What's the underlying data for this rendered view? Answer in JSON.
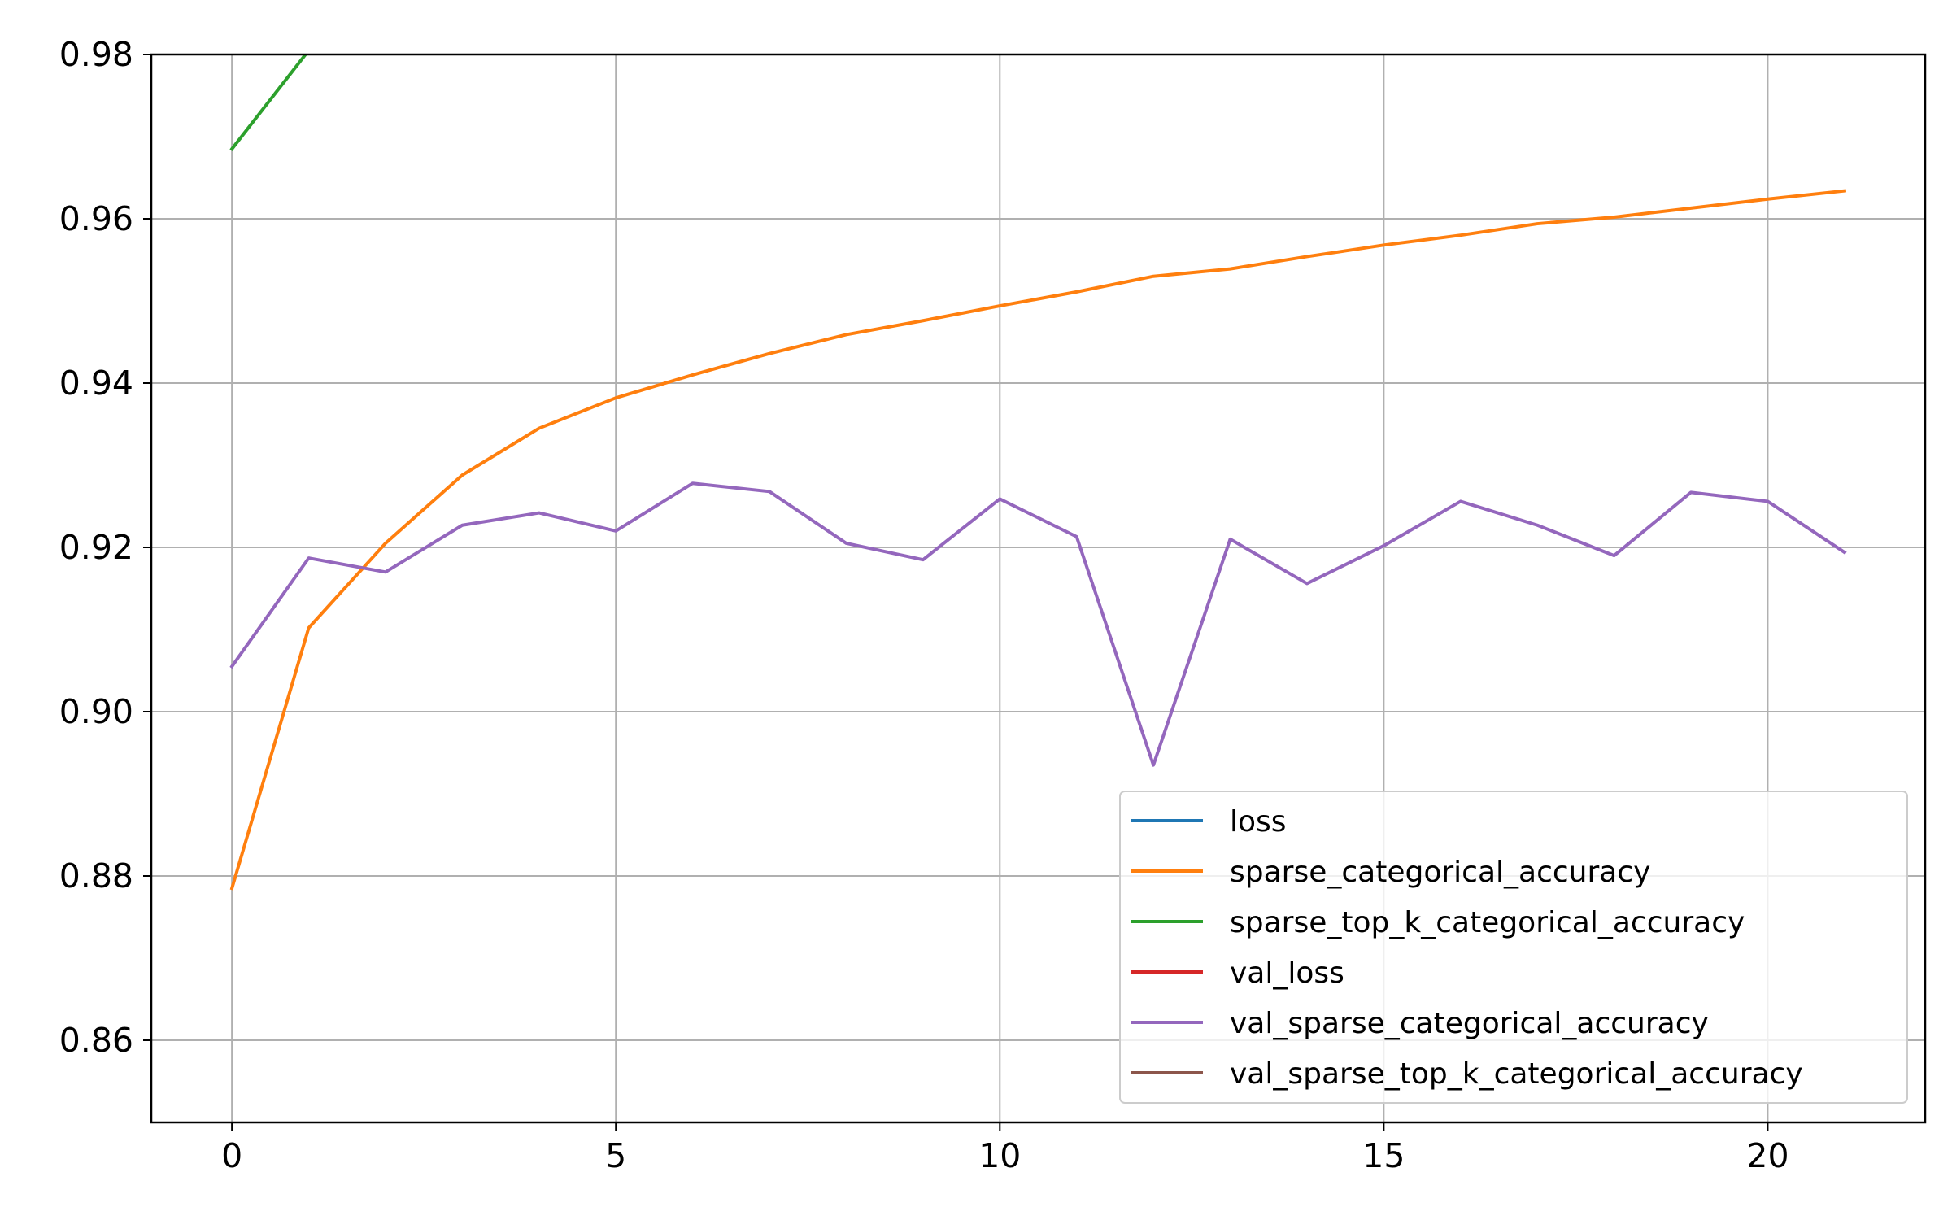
{
  "chart_data": {
    "type": "line",
    "title": "",
    "xlabel": "",
    "ylabel": "",
    "xlim": [
      -1.05,
      22.05
    ],
    "ylim": [
      0.85,
      0.98
    ],
    "xticks": [
      0,
      5,
      10,
      15,
      20
    ],
    "yticks": [
      0.86,
      0.88,
      0.9,
      0.92,
      0.94,
      0.96,
      0.98
    ],
    "x_tick_labels": [
      "0",
      "5",
      "10",
      "15",
      "20"
    ],
    "y_tick_labels": [
      "0.86",
      "0.88",
      "0.90",
      "0.92",
      "0.94",
      "0.96",
      "0.98"
    ],
    "grid": true,
    "legend_position": "bottom-right",
    "series": [
      {
        "name": "loss",
        "color": "#1f77b4",
        "x": [],
        "values": []
      },
      {
        "name": "sparse_categorical_accuracy",
        "color": "#ff7f0e",
        "x": [
          0,
          1,
          2,
          3,
          4,
          5,
          6,
          7,
          8,
          9,
          10,
          11,
          12,
          13,
          14,
          15,
          16,
          17,
          18,
          19,
          20,
          21
        ],
        "values": [
          0.8785,
          0.9102,
          0.9205,
          0.9288,
          0.9345,
          0.9382,
          0.941,
          0.9436,
          0.9459,
          0.9476,
          0.9494,
          0.9511,
          0.953,
          0.9539,
          0.9554,
          0.9568,
          0.958,
          0.9594,
          0.9602,
          0.9613,
          0.9624,
          0.9634
        ]
      },
      {
        "name": "sparse_top_k_categorical_accuracy",
        "color": "#2ca02c",
        "x": [
          0,
          1
        ],
        "values": [
          0.9685,
          0.9805
        ]
      },
      {
        "name": "val_loss",
        "color": "#d62728",
        "x": [],
        "values": []
      },
      {
        "name": "val_sparse_categorical_accuracy",
        "color": "#9467bd",
        "x": [
          0,
          1,
          2,
          3,
          4,
          5,
          6,
          7,
          8,
          9,
          10,
          11,
          12,
          13,
          14,
          15,
          16,
          17,
          18,
          19,
          20,
          21
        ],
        "values": [
          0.9055,
          0.9187,
          0.917,
          0.9227,
          0.9242,
          0.922,
          0.9278,
          0.9268,
          0.9205,
          0.9185,
          0.9259,
          0.9213,
          0.8935,
          0.921,
          0.9156,
          0.9202,
          0.9256,
          0.9227,
          0.919,
          0.9267,
          0.9256,
          0.9194
        ]
      },
      {
        "name": "val_sparse_top_k_categorical_accuracy",
        "color": "#8c564b",
        "x": [],
        "values": []
      }
    ]
  }
}
